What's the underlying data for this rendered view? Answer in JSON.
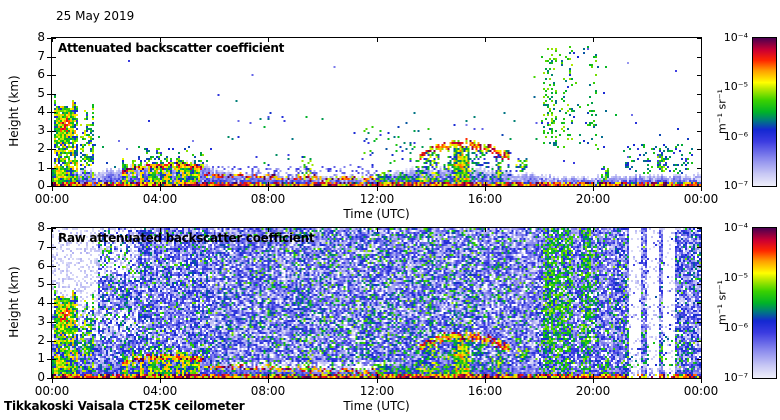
{
  "header": {
    "date_label": "25 May 2019"
  },
  "footer": {
    "instrument_label": "Tikkakoski Vaisala CT25K ceilometer"
  },
  "colors": {
    "background": "#ffffff",
    "axis": "#000000",
    "text": "#000000"
  },
  "chart_data": [
    {
      "type": "heatmap",
      "title": "Attenuated backscatter coefficient",
      "xlabel": "Time (UTC)",
      "ylabel": "Height (km)",
      "x_ticks": [
        "00:00",
        "04:00",
        "08:00",
        "12:00",
        "16:00",
        "20:00",
        "00:00"
      ],
      "y_ticks": [
        "0",
        "1",
        "2",
        "3",
        "4",
        "5",
        "6",
        "7",
        "8"
      ],
      "x_range_hours": [
        0,
        24
      ],
      "y_range_km": [
        0,
        8
      ],
      "background": "white",
      "colorbar": {
        "ticks": [
          "10⁻⁴",
          "10⁻⁵",
          "10⁻⁶",
          "10⁻⁷"
        ],
        "unit": "m⁻¹ sr⁻¹",
        "vmin_exp": -7,
        "vmax_exp": -4,
        "scale": "log"
      },
      "colormap": [
        [
          0.0,
          "#eeeefa"
        ],
        [
          0.08,
          "#c8c8f5"
        ],
        [
          0.18,
          "#8c8cee"
        ],
        [
          0.3,
          "#3c3ce1"
        ],
        [
          0.38,
          "#1428d2"
        ],
        [
          0.44,
          "#007882"
        ],
        [
          0.5,
          "#00b428"
        ],
        [
          0.58,
          "#3cd200"
        ],
        [
          0.66,
          "#beeb00"
        ],
        [
          0.7,
          "#ffff00"
        ],
        [
          0.78,
          "#ffa000"
        ],
        [
          0.85,
          "#ff2800"
        ],
        [
          0.92,
          "#cd0032"
        ],
        [
          1.0,
          "#500050"
        ]
      ],
      "features": [
        {
          "type": "layer",
          "t0": 0,
          "t1": 24,
          "pts": [
            [
              0,
              1.0
            ],
            [
              1.8,
              0.75
            ],
            [
              2.6,
              1.0
            ],
            [
              5.6,
              1.2
            ],
            [
              6.2,
              0.75
            ],
            [
              8,
              0.6
            ],
            [
              10,
              0.5
            ],
            [
              12,
              0.55
            ],
            [
              13.5,
              0.95
            ],
            [
              16,
              0.95
            ],
            [
              17,
              0.7
            ],
            [
              19,
              0.5
            ],
            [
              21,
              0.55
            ],
            [
              24,
              0.6
            ]
          ],
          "v": 0.3,
          "fall": 0.5,
          "gap": 0.15
        },
        {
          "type": "layer",
          "t0": 0,
          "t1": 24,
          "pts": [
            [
              0,
              0.3
            ],
            [
              24,
              0.25
            ]
          ],
          "v": 0.5,
          "fall": 0.4,
          "gap": 0.3
        },
        {
          "type": "band",
          "pts": [
            [
              0,
              0.07
            ],
            [
              24,
              0.07
            ]
          ],
          "w": 0.1,
          "v": 0.85,
          "jit": 0.06,
          "gap": 0.05
        },
        {
          "type": "col",
          "t0": 0.05,
          "t1": 0.95,
          "h0": 0.2,
          "h1": 5.1,
          "v": 0.6,
          "dens": 0.8,
          "topjit": 1.0,
          "cw": 2
        },
        {
          "type": "blob",
          "t0": 0.1,
          "t1": 0.85,
          "h0": 2.3,
          "h1": 4.3,
          "v": 0.74,
          "dens": 0.95
        },
        {
          "type": "col",
          "t0": 0.0,
          "t1": 0.7,
          "h0": 0,
          "h1": 1.2,
          "v": 0.62,
          "dens": 0.95,
          "topjit": 0.3
        },
        {
          "type": "col",
          "t0": 0.95,
          "t1": 1.55,
          "h0": 0.3,
          "h1": 4.7,
          "v": 0.55,
          "dens": 0.45,
          "topjit": 1.6,
          "cw": 2,
          "cgap": 0.35
        },
        {
          "type": "col",
          "t0": 2.6,
          "t1": 5.6,
          "h0": 0,
          "h1": 1.55,
          "v": 0.6,
          "dens": 0.93,
          "topjit": 0.5,
          "cw": 2,
          "cgap": 0.08
        },
        {
          "type": "col",
          "t0": 3.2,
          "t1": 5.6,
          "h0": 1.0,
          "h1": 2.3,
          "v": 0.5,
          "dens": 0.3,
          "topjit": 1.1,
          "cw": 2
        },
        {
          "type": "band",
          "pts": [
            [
              2.6,
              0.8
            ],
            [
              3.4,
              1.05
            ],
            [
              4.6,
              1.1
            ],
            [
              5.6,
              1.05
            ]
          ],
          "w": 0.11,
          "v": 0.85,
          "jit": 0.18,
          "gap": 0.1
        },
        {
          "type": "band",
          "pts": [
            [
              5.6,
              0.6
            ],
            [
              8,
              0.5
            ],
            [
              10,
              0.42
            ],
            [
              12,
              0.36
            ]
          ],
          "w": 0.09,
          "v": 0.83,
          "jit": 0.22,
          "gap": 0.3
        },
        {
          "type": "dots",
          "t0": 5.6,
          "t1": 12,
          "h0": 0.35,
          "h1": 1.05,
          "dens": 0.2,
          "v0": 0.12,
          "v1": 0.3
        },
        {
          "type": "dots",
          "t0": 9.2,
          "t1": 9.7,
          "h0": 0.4,
          "h1": 1.6,
          "dens": 0.25,
          "v0": 0.35,
          "v1": 0.7
        },
        {
          "type": "col",
          "t0": 12,
          "t1": 13.6,
          "h0": 0,
          "h1": 1.15,
          "v": 0.5,
          "dens": 0.65,
          "topjit": 0.7
        },
        {
          "type": "dots",
          "t0": 11.5,
          "t1": 14,
          "h0": 1,
          "h1": 3.2,
          "dens": 0.06,
          "v0": 0.3,
          "v1": 0.6
        },
        {
          "type": "band",
          "pts": [
            [
              13.6,
              1.7
            ],
            [
              14.3,
              2.1
            ],
            [
              15.5,
              2.3
            ]
          ],
          "w": 0.16,
          "v": 0.8,
          "jit": 0.3,
          "gap": 0.15
        },
        {
          "type": "col",
          "t0": 13.6,
          "t1": 15.5,
          "h0": 0,
          "h1": 2.0,
          "v": 0.55,
          "dens": 0.55,
          "topjit": 1.0,
          "cw": 2,
          "cgap": 0.2
        },
        {
          "type": "col",
          "t0": 14.85,
          "t1": 15.45,
          "h0": 0,
          "h1": 2.25,
          "v": 0.63,
          "dens": 0.95,
          "topjit": 0.2
        },
        {
          "type": "band",
          "pts": [
            [
              15.5,
              2.25
            ],
            [
              16.3,
              1.95
            ],
            [
              16.9,
              1.5
            ]
          ],
          "w": 0.18,
          "v": 0.8,
          "jit": 0.3,
          "gap": 0.15
        },
        {
          "type": "dots",
          "t0": 15.5,
          "t1": 17.0,
          "h0": 0.3,
          "h1": 1.9,
          "dens": 0.3,
          "v0": 0.3,
          "v1": 0.55
        },
        {
          "type": "col",
          "t0": 16.45,
          "t1": 16.6,
          "h0": 0,
          "h1": 1.5,
          "v": 0.55,
          "dens": 0.7,
          "topjit": 0.4
        },
        {
          "type": "col",
          "t0": 17.1,
          "t1": 17.6,
          "h0": 0.8,
          "h1": 1.95,
          "v": 0.55,
          "dens": 0.5,
          "topjit": 0.5
        },
        {
          "type": "dots",
          "t0": 17.8,
          "t1": 20.5,
          "h0": 2,
          "h1": 7.6,
          "dens": 0.025,
          "v0": 0.35,
          "v1": 0.6
        },
        {
          "type": "dots",
          "t0": 18.15,
          "t1": 18.65,
          "h0": 2.2,
          "h1": 7.6,
          "dens": 0.2,
          "v0": 0.42,
          "v1": 0.66
        },
        {
          "type": "dots",
          "t0": 18.8,
          "t1": 19.25,
          "h0": 2.5,
          "h1": 7.6,
          "dens": 0.18,
          "v0": 0.42,
          "v1": 0.66
        },
        {
          "type": "dots",
          "t0": 19.9,
          "t1": 20.15,
          "h0": 2.5,
          "h1": 7.3,
          "dens": 0.16,
          "v0": 0.42,
          "v1": 0.62
        },
        {
          "type": "col",
          "t0": 20.3,
          "t1": 20.6,
          "h0": 0.2,
          "h1": 1.3,
          "v": 0.5,
          "dens": 0.5,
          "topjit": 0.6
        },
        {
          "type": "dots",
          "t0": 21.2,
          "t1": 23.7,
          "h0": 0.6,
          "h1": 2.3,
          "dens": 0.18,
          "v0": 0.3,
          "v1": 0.58
        },
        {
          "type": "col",
          "t0": 22.4,
          "t1": 22.75,
          "h0": 0.8,
          "h1": 2.1,
          "v": 0.5,
          "dens": 0.55,
          "topjit": 0.5
        },
        {
          "type": "dots",
          "t0": 1.5,
          "t1": 24,
          "h0": 0.8,
          "h1": 4,
          "dens": 0.008,
          "v0": 0.2,
          "v1": 0.5
        },
        {
          "type": "dots",
          "t0": 2,
          "t1": 24,
          "h0": 4,
          "h1": 7.5,
          "dens": 0.0015,
          "v0": 0.15,
          "v1": 0.45
        }
      ]
    },
    {
      "type": "heatmap",
      "title": "Raw attenuated backscatter coefficient",
      "xlabel": "Time (UTC)",
      "ylabel": "Height (km)",
      "x_ticks": [
        "00:00",
        "04:00",
        "08:00",
        "12:00",
        "16:00",
        "20:00",
        "00:00"
      ],
      "y_ticks": [
        "0",
        "1",
        "2",
        "3",
        "4",
        "5",
        "6",
        "7",
        "8"
      ],
      "x_range_hours": [
        0,
        24
      ],
      "y_range_km": [
        0,
        8
      ],
      "background": "noise",
      "colorbar": {
        "ticks": [
          "10⁻⁴",
          "10⁻⁵",
          "10⁻⁶",
          "10⁻⁷"
        ],
        "unit": "m⁻¹ sr⁻¹",
        "vmin_exp": -7,
        "vmax_exp": -4,
        "scale": "log"
      },
      "features_ref": 0,
      "noise": {
        "white_p": 0.1,
        "light_p": 0.2,
        "green_p": 0.07,
        "day_green_boost": 0.05,
        "day_hours": [
          8,
          17
        ],
        "light_regions": [
          {
            "t0": 0,
            "t1": 1.7,
            "h0": 3.6,
            "h1": 8,
            "s": 0.8
          },
          {
            "t0": 1.7,
            "t1": 3.2,
            "h0": 5.2,
            "h1": 8,
            "s": 0.45
          },
          {
            "t0": 0,
            "t1": 3.2,
            "h0": 2.0,
            "h1": 3.6,
            "s": 0.3
          },
          {
            "t0": 5.5,
            "t1": 12.8,
            "h0": 0.3,
            "h1": 0.9,
            "s": 0.55
          }
        ],
        "stripes": [
          {
            "t0": 18.2,
            "t1": 19.3,
            "kind": "green"
          },
          {
            "t0": 19.6,
            "t1": 19.95,
            "kind": "green"
          },
          {
            "t0": 21.35,
            "t1": 21.8,
            "kind": "white"
          },
          {
            "t0": 22.0,
            "t1": 22.45,
            "kind": "white"
          },
          {
            "t0": 22.6,
            "t1": 23.05,
            "kind": "white"
          }
        ]
      }
    }
  ]
}
